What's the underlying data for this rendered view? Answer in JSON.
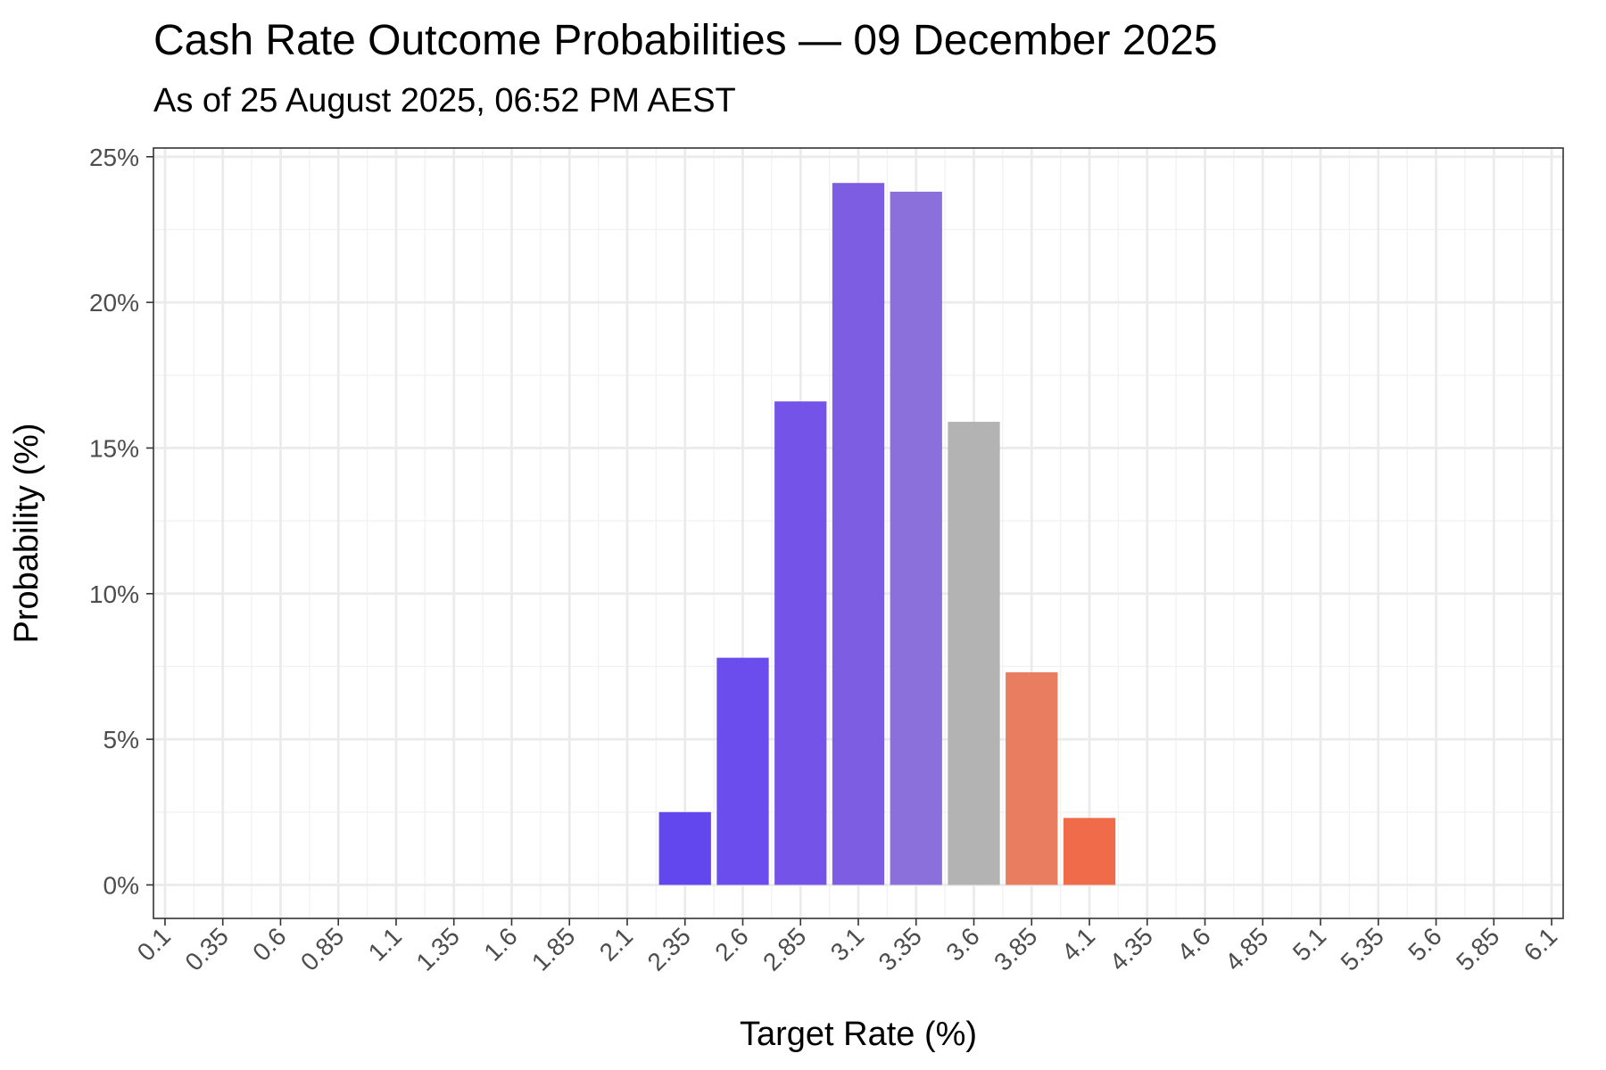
{
  "chart_data": {
    "type": "bar",
    "title": "Cash Rate Outcome Probabilities — 09 December 2025",
    "subtitle": "As of 25 August 2025, 06:52 PM AEST",
    "xlabel": "Target Rate (%)",
    "ylabel": "Probability (%)",
    "categories": [
      "0.1",
      "0.35",
      "0.6",
      "0.85",
      "1.1",
      "1.35",
      "1.6",
      "1.85",
      "2.1",
      "2.35",
      "2.6",
      "2.85",
      "3.1",
      "3.35",
      "3.6",
      "3.85",
      "4.1",
      "4.35",
      "4.6",
      "4.85",
      "5.1",
      "5.35",
      "5.6",
      "5.85",
      "6.1"
    ],
    "bars": [
      {
        "x": 2.35,
        "value": 2.5,
        "color": "#6347ee"
      },
      {
        "x": 2.6,
        "value": 7.8,
        "color": "#6b4ded"
      },
      {
        "x": 2.85,
        "value": 16.6,
        "color": "#7454e8"
      },
      {
        "x": 3.1,
        "value": 24.1,
        "color": "#7d5ee3"
      },
      {
        "x": 3.35,
        "value": 23.8,
        "color": "#8b70dc"
      },
      {
        "x": 3.6,
        "value": 15.9,
        "color": "#b3b3b3"
      },
      {
        "x": 3.85,
        "value": 7.3,
        "color": "#e87d60"
      },
      {
        "x": 4.1,
        "value": 2.3,
        "color": "#f06b4a"
      }
    ],
    "xlim": [
      0.05,
      6.15
    ],
    "ylim": [
      -1.15,
      25.3
    ],
    "y_ticks": [
      0,
      5,
      10,
      15,
      20,
      25
    ],
    "y_tick_labels": [
      "0%",
      "5%",
      "10%",
      "15%",
      "20%",
      "25%"
    ],
    "grid": true,
    "legend": "none"
  }
}
